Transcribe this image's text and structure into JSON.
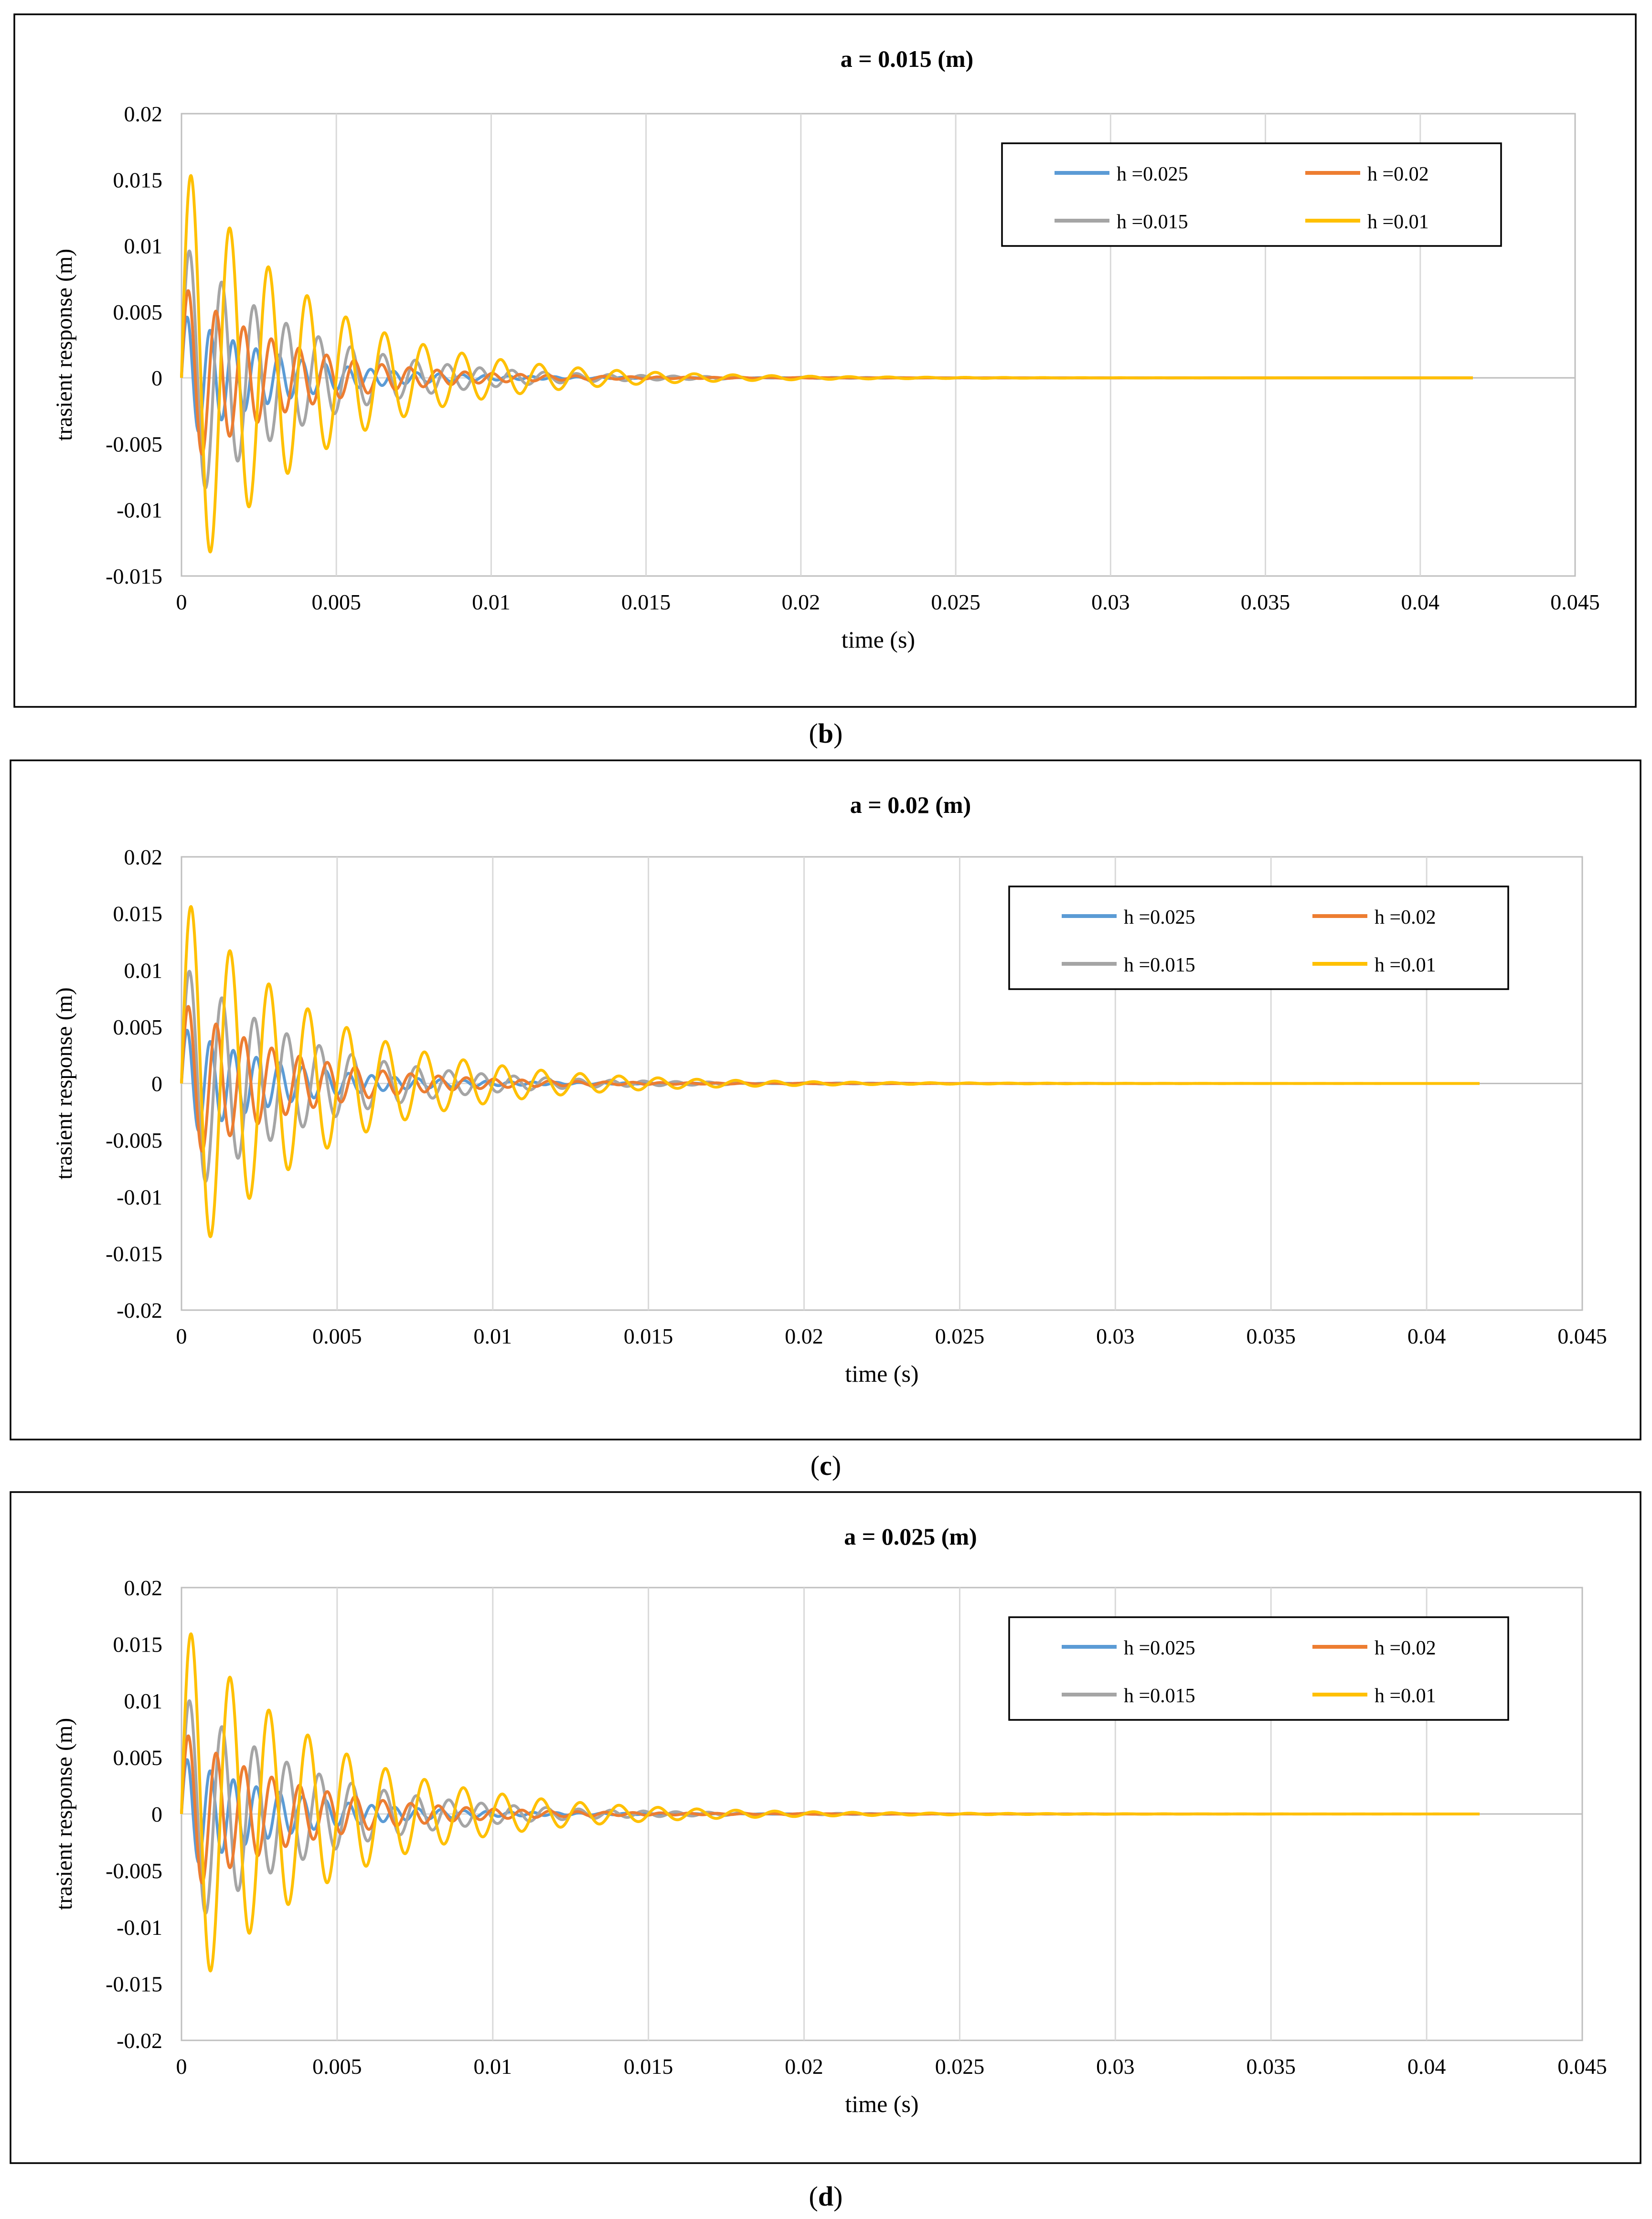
{
  "chart_data": [
    {
      "type": "line",
      "title": "a = 0.015 (m)",
      "panel_label": "b",
      "xlabel": "time (s)",
      "ylabel": "trasient response (m)",
      "xlim": [
        0,
        0.045
      ],
      "ylim": [
        -0.015,
        0.02
      ],
      "x_ticks": [
        "0",
        "0.005",
        "0.01",
        "0.015",
        "0.02",
        "0.025",
        "0.03",
        "0.035",
        "0.04",
        "0.045"
      ],
      "y_ticks": [
        "0.02",
        "0.015",
        "0.01",
        "0.005",
        "0",
        "-0.005",
        "-0.01",
        "-0.015"
      ],
      "grid": "vertical",
      "legend_position": "top-right",
      "series": [
        {
          "name": "h =0.025",
          "color": "#5b9bd5",
          "peak": 0.0046,
          "first_trough": -0.0045,
          "frequency_hz": 1350,
          "decay_per_s": 330
        },
        {
          "name": "h =0.02",
          "color": "#ed7d31",
          "peak": 0.0066,
          "first_trough": -0.0062,
          "frequency_hz": 1120,
          "decay_per_s": 300
        },
        {
          "name": "h =0.015",
          "color": "#a5a5a5",
          "peak": 0.0096,
          "first_trough": -0.009,
          "frequency_hz": 960,
          "decay_per_s": 270
        },
        {
          "name": "h =0.01",
          "color": "#ffc000",
          "peak": 0.0153,
          "first_trough": -0.0135,
          "frequency_hz": 800,
          "decay_per_s": 240
        }
      ],
      "x_end": 0.0417
    },
    {
      "type": "line",
      "title": "a = 0.02 (m)",
      "panel_label": "c",
      "xlabel": "time (s)",
      "ylabel": "trasient response (m)",
      "xlim": [
        0,
        0.045
      ],
      "ylim": [
        -0.02,
        0.02
      ],
      "x_ticks": [
        "0",
        "0.005",
        "0.01",
        "0.015",
        "0.02",
        "0.025",
        "0.03",
        "0.035",
        "0.04",
        "0.045"
      ],
      "y_ticks": [
        "0.02",
        "0.015",
        "0.01",
        "0.005",
        "0",
        "-0.005",
        "-0.01",
        "-0.015",
        "-0.02"
      ],
      "grid": "vertical",
      "legend_position": "top-right",
      "series": [
        {
          "name": "h =0.025",
          "color": "#5b9bd5",
          "peak": 0.0047,
          "first_trough": -0.0045,
          "frequency_hz": 1350,
          "decay_per_s": 320
        },
        {
          "name": "h =0.02",
          "color": "#ed7d31",
          "peak": 0.0068,
          "first_trough": -0.0063,
          "frequency_hz": 1120,
          "decay_per_s": 290
        },
        {
          "name": "h =0.015",
          "color": "#a5a5a5",
          "peak": 0.0099,
          "first_trough": -0.0093,
          "frequency_hz": 960,
          "decay_per_s": 260
        },
        {
          "name": "h =0.01",
          "color": "#ffc000",
          "peak": 0.0156,
          "first_trough": -0.014,
          "frequency_hz": 800,
          "decay_per_s": 230
        }
      ],
      "x_end": 0.0417
    },
    {
      "type": "line",
      "title": "a = 0.025 (m)",
      "panel_label": "d",
      "xlabel": "time (s)",
      "ylabel": "trasient response (m)",
      "xlim": [
        0,
        0.045
      ],
      "ylim": [
        -0.02,
        0.02
      ],
      "x_ticks": [
        "0",
        "0.005",
        "0.01",
        "0.015",
        "0.02",
        "0.025",
        "0.03",
        "0.035",
        "0.04",
        "0.045"
      ],
      "y_ticks": [
        "0.02",
        "0.015",
        "0.01",
        "0.005",
        "0",
        "-0.005",
        "-0.01",
        "-0.015",
        "-0.02"
      ],
      "grid": "vertical",
      "legend_position": "top-right",
      "series": [
        {
          "name": "h =0.025",
          "color": "#5b9bd5",
          "peak": 0.0048,
          "first_trough": -0.0046,
          "frequency_hz": 1350,
          "decay_per_s": 310
        },
        {
          "name": "h =0.02",
          "color": "#ed7d31",
          "peak": 0.0069,
          "first_trough": -0.0064,
          "frequency_hz": 1120,
          "decay_per_s": 280
        },
        {
          "name": "h =0.015",
          "color": "#a5a5a5",
          "peak": 0.01,
          "first_trough": -0.0095,
          "frequency_hz": 960,
          "decay_per_s": 250
        },
        {
          "name": "h =0.01",
          "color": "#ffc000",
          "peak": 0.0159,
          "first_trough": -0.0143,
          "frequency_hz": 800,
          "decay_per_s": 220
        }
      ],
      "x_end": 0.0417
    }
  ]
}
